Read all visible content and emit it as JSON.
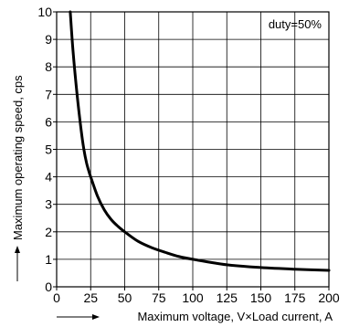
{
  "chart_data": {
    "type": "line",
    "annotation": "duty=50%",
    "xlabel": "Maximum voltage, V×Load current, A",
    "ylabel": "Maximum operating speed, cps",
    "xlim": [
      0,
      200
    ],
    "ylim": [
      0,
      10
    ],
    "x_ticks": [
      "0",
      "25",
      "50",
      "75",
      "100",
      "125",
      "150",
      "175",
      "200"
    ],
    "y_ticks": [
      "0",
      "1",
      "2",
      "3",
      "4",
      "5",
      "6",
      "7",
      "8",
      "9",
      "10"
    ],
    "x_tick_values": [
      0,
      25,
      50,
      75,
      100,
      125,
      150,
      175,
      200
    ],
    "y_tick_values": [
      0,
      1,
      2,
      3,
      4,
      5,
      6,
      7,
      8,
      9,
      10
    ],
    "grid": true,
    "series": [
      {
        "x": [
          10,
          12,
          15,
          18,
          20,
          22,
          24,
          25,
          30,
          35,
          40,
          45,
          50,
          60,
          70,
          80,
          90,
          100,
          125,
          150,
          175,
          200
        ],
        "values": [
          10,
          8.6,
          7.0,
          5.7,
          5.0,
          4.5,
          4.15,
          4.0,
          3.3,
          2.8,
          2.45,
          2.2,
          2.0,
          1.65,
          1.42,
          1.25,
          1.1,
          1.0,
          0.8,
          0.7,
          0.64,
          0.6
        ]
      }
    ],
    "colors": {
      "line": "#000000",
      "grid": "#000000",
      "background": "#ffffff"
    }
  }
}
